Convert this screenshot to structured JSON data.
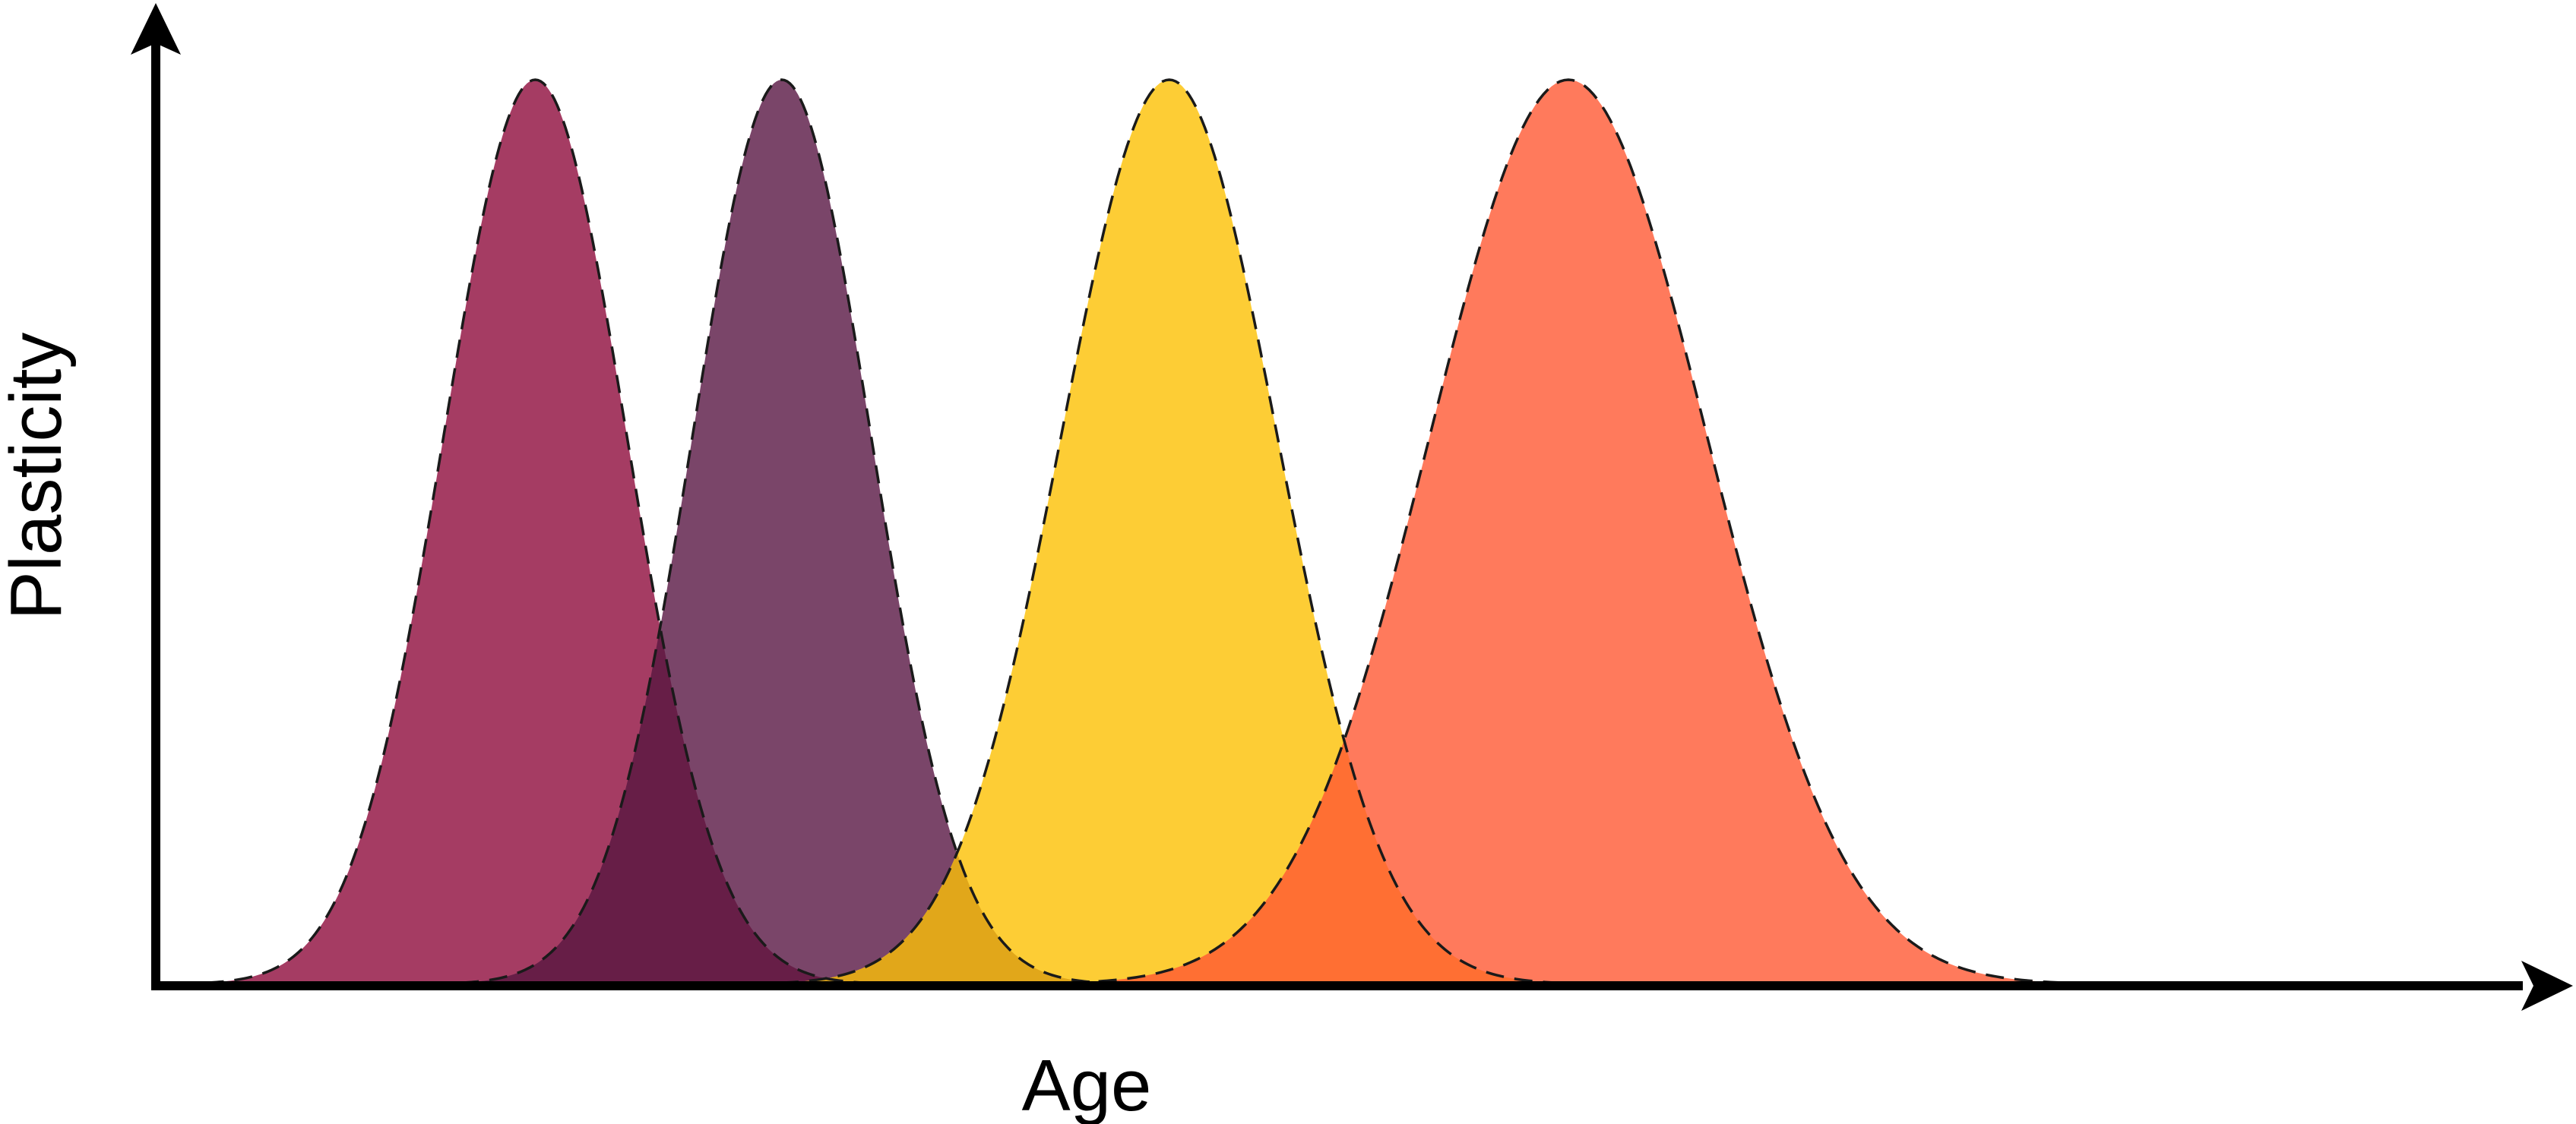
{
  "chart_data": {
    "type": "area",
    "title": "",
    "xlabel": "Age",
    "ylabel": "Plasticity",
    "grid": false,
    "legend": "none",
    "tick_labels": false,
    "xlim": [
      0,
      100
    ],
    "ylim": [
      0,
      1
    ],
    "series": [
      {
        "color": "#a53c63",
        "peak_x": 16,
        "peak_y": 1.0,
        "spread": 3.9
      },
      {
        "color": "#7a4569",
        "peak_x": 26.5,
        "peak_y": 1.0,
        "spread": 3.8
      },
      {
        "color": "#fdcd35",
        "peak_x": 43,
        "peak_y": 1.0,
        "spread": 4.6
      },
      {
        "color": "#ff7a5c",
        "peak_x": 60,
        "peak_y": 1.0,
        "spread": 5.9
      }
    ],
    "overlap_colors": [
      "#671e47",
      "#e1a71a",
      "#ff6f33"
    ]
  }
}
